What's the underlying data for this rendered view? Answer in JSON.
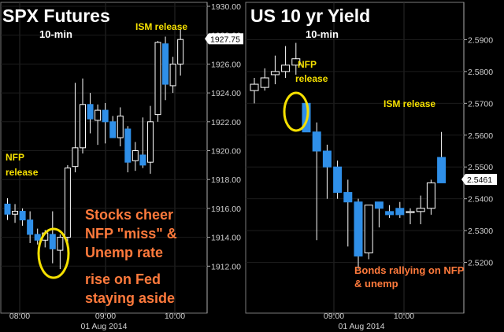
{
  "chart_data": [
    {
      "type": "candlestick",
      "title": "SPX Futures",
      "subtitle": "10-min",
      "ylim": [
        1910,
        1930
      ],
      "y_ticks": [
        "1930.00",
        "1928.00",
        "1926.00",
        "1924.00",
        "1922.00",
        "1920.00",
        "1918.00",
        "1916.00",
        "1914.00",
        "1912.00"
      ],
      "last_price_label": "1927.75",
      "last_price": 1927.75,
      "x_ticks": [
        "08:00",
        "09:00",
        "10:00"
      ],
      "date_label": "01 Aug 2014",
      "annotations": {
        "nfp": [
          "NFP",
          "release"
        ],
        "ism": "ISM release",
        "comment": [
          "Stocks cheer",
          "NFP \"miss\" &",
          "Unemp rate",
          "rise on Fed",
          "staying aside"
        ]
      },
      "colors": {
        "up": "#ffffff",
        "down": "#2f8fe8",
        "ann_yellow": "#f5e000",
        "ann_orange": "#ff7a3c"
      },
      "candles": [
        {
          "time": "07:30",
          "open": 1916.3,
          "high": 1916.7,
          "low": 1915.2,
          "close": 1915.6
        },
        {
          "time": "07:40",
          "open": 1915.6,
          "high": 1916.3,
          "low": 1915.0,
          "close": 1915.8
        },
        {
          "time": "07:50",
          "open": 1915.8,
          "high": 1916.0,
          "low": 1914.8,
          "close": 1915.2
        },
        {
          "time": "08:00",
          "open": 1915.2,
          "high": 1915.8,
          "low": 1913.6,
          "close": 1914.2
        },
        {
          "time": "08:10",
          "open": 1914.2,
          "high": 1914.6,
          "low": 1913.5,
          "close": 1913.8
        },
        {
          "time": "08:20",
          "open": 1913.8,
          "high": 1914.5,
          "low": 1913.3,
          "close": 1914.3
        },
        {
          "time": "08:30",
          "open": 1914.2,
          "high": 1915.8,
          "low": 1912.2,
          "close": 1913.2
        },
        {
          "time": "08:40",
          "open": 1913.1,
          "high": 1914.2,
          "low": 1911.8,
          "close": 1914.0
        },
        {
          "time": "08:50",
          "open": 1914.0,
          "high": 1919.0,
          "low": 1913.3,
          "close": 1918.8
        },
        {
          "time": "09:00",
          "open": 1918.9,
          "high": 1924.7,
          "low": 1918.5,
          "close": 1920.2
        },
        {
          "time": "09:10",
          "open": 1920.2,
          "high": 1925.0,
          "low": 1919.8,
          "close": 1923.2
        },
        {
          "time": "09:20",
          "open": 1923.2,
          "high": 1924.0,
          "low": 1921.2,
          "close": 1922.2
        },
        {
          "time": "09:30",
          "open": 1922.1,
          "high": 1923.2,
          "low": 1920.4,
          "close": 1922.8
        },
        {
          "time": "09:40",
          "open": 1922.8,
          "high": 1923.3,
          "low": 1920.5,
          "close": 1922.0
        },
        {
          "time": "09:50",
          "open": 1922.0,
          "high": 1922.4,
          "low": 1920.9,
          "close": 1920.9
        },
        {
          "time": "10:00",
          "open": 1920.9,
          "high": 1923.0,
          "low": 1920.3,
          "close": 1922.4
        },
        {
          "time": "10:10",
          "open": 1921.5,
          "high": 1921.7,
          "low": 1918.5,
          "close": 1919.2
        },
        {
          "time": "10:20",
          "open": 1919.3,
          "high": 1920.6,
          "low": 1918.6,
          "close": 1920.0
        },
        {
          "time": "10:30",
          "open": 1919.7,
          "high": 1922.3,
          "low": 1918.8,
          "close": 1919.0
        },
        {
          "time": "10:40",
          "open": 1919.2,
          "high": 1923.1,
          "low": 1918.4,
          "close": 1922.0
        },
        {
          "time": "10:50",
          "open": 1922.5,
          "high": 1927.6,
          "low": 1922.0,
          "close": 1927.5
        },
        {
          "time": "11:00",
          "open": 1927.4,
          "high": 1927.9,
          "low": 1923.5,
          "close": 1924.6
        },
        {
          "time": "11:10",
          "open": 1924.5,
          "high": 1926.5,
          "low": 1924.0,
          "close": 1926.0
        },
        {
          "time": "11:20",
          "open": 1926.0,
          "high": 1928.4,
          "low": 1925.2,
          "close": 1927.7
        }
      ]
    },
    {
      "type": "candlestick",
      "title": "US 10 yr Yield",
      "subtitle": "10-min",
      "ylim": [
        2.51,
        2.6
      ],
      "y_ticks": [
        "2.5900",
        "2.5800",
        "2.5700",
        "2.5600",
        "2.5500",
        "2.5400",
        "2.5300",
        "2.5200"
      ],
      "last_price_label": "2.5461",
      "last_price": 2.5461,
      "x_ticks": [
        "09:00",
        "10:00"
      ],
      "date_label": "01 Aug 2014",
      "annotations": {
        "nfp": [
          "NFP",
          "release"
        ],
        "ism": "ISM release",
        "comment": [
          "Bonds rallying on NFP",
          "& unemp"
        ]
      },
      "colors": {
        "up": "#ffffff",
        "down": "#2f8fe8",
        "ann_yellow": "#f5e000",
        "ann_orange": "#ff7a3c"
      },
      "candles": [
        {
          "time": "07:50",
          "open": 2.574,
          "high": 2.578,
          "low": 2.57,
          "close": 2.576
        },
        {
          "time": "08:00",
          "open": 2.575,
          "high": 2.581,
          "low": 2.574,
          "close": 2.578
        },
        {
          "time": "08:10",
          "open": 2.579,
          "high": 2.585,
          "low": 2.576,
          "close": 2.58
        },
        {
          "time": "08:20",
          "open": 2.58,
          "high": 2.588,
          "low": 2.578,
          "close": 2.582
        },
        {
          "time": "08:30",
          "open": 2.582,
          "high": 2.589,
          "low": 2.579,
          "close": 2.584
        },
        {
          "time": "08:40",
          "open": 2.57,
          "high": 2.571,
          "low": 2.561,
          "close": 2.561
        },
        {
          "time": "08:50",
          "open": 2.561,
          "high": 2.564,
          "low": 2.527,
          "close": 2.555
        },
        {
          "time": "09:00",
          "open": 2.555,
          "high": 2.557,
          "low": 2.54,
          "close": 2.55
        },
        {
          "time": "09:10",
          "open": 2.55,
          "high": 2.552,
          "low": 2.54,
          "close": 2.542
        },
        {
          "time": "09:20",
          "open": 2.542,
          "high": 2.546,
          "low": 2.525,
          "close": 2.539
        },
        {
          "time": "09:30",
          "open": 2.539,
          "high": 2.54,
          "low": 2.518,
          "close": 2.522
        },
        {
          "time": "09:40",
          "open": 2.523,
          "high": 2.538,
          "low": 2.521,
          "close": 2.538
        },
        {
          "time": "09:50",
          "open": 2.539,
          "high": 2.539,
          "low": 2.531,
          "close": 2.537
        },
        {
          "time": "10:00",
          "open": 2.536,
          "high": 2.538,
          "low": 2.534,
          "close": 2.535
        },
        {
          "time": "10:10",
          "open": 2.537,
          "high": 2.539,
          "low": 2.534,
          "close": 2.535
        },
        {
          "time": "10:20",
          "open": 2.536,
          "high": 2.537,
          "low": 2.532,
          "close": 2.536
        },
        {
          "time": "10:30",
          "open": 2.536,
          "high": 2.541,
          "low": 2.532,
          "close": 2.537
        },
        {
          "time": "10:40",
          "open": 2.537,
          "high": 2.546,
          "low": 2.535,
          "close": 2.545
        },
        {
          "time": "10:50",
          "open": 2.553,
          "high": 2.561,
          "low": 2.545,
          "close": 2.545
        }
      ]
    }
  ]
}
